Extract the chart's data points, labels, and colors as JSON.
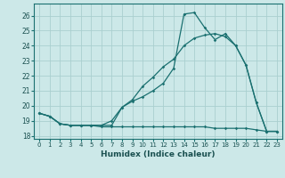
{
  "xlabel": "Humidex (Indice chaleur)",
  "ylabel": "",
  "bg_color": "#cce8e8",
  "grid_color": "#aacfcf",
  "line_color": "#1a7070",
  "xlim": [
    -0.5,
    23.5
  ],
  "ylim": [
    17.8,
    26.8
  ],
  "yticks": [
    18,
    19,
    20,
    21,
    22,
    23,
    24,
    25,
    26
  ],
  "xticks": [
    0,
    1,
    2,
    3,
    4,
    5,
    6,
    7,
    8,
    9,
    10,
    11,
    12,
    13,
    14,
    15,
    16,
    17,
    18,
    19,
    20,
    21,
    22,
    23
  ],
  "series1_x": [
    0,
    1,
    2,
    3,
    4,
    5,
    6,
    7,
    8,
    9,
    10,
    11,
    12,
    13,
    14,
    15,
    16,
    17,
    18,
    19,
    20,
    21,
    22,
    23
  ],
  "series1_y": [
    19.5,
    19.3,
    18.8,
    18.7,
    18.7,
    18.7,
    18.6,
    18.6,
    18.6,
    18.6,
    18.6,
    18.6,
    18.6,
    18.6,
    18.6,
    18.6,
    18.6,
    18.5,
    18.5,
    18.5,
    18.5,
    18.4,
    18.3,
    18.3
  ],
  "series2_x": [
    0,
    1,
    2,
    3,
    4,
    5,
    6,
    7,
    8,
    9,
    10,
    11,
    12,
    13,
    14,
    15,
    16,
    17,
    18,
    19,
    20,
    21,
    22,
    23
  ],
  "series2_y": [
    19.5,
    19.3,
    18.8,
    18.7,
    18.7,
    18.7,
    18.7,
    18.7,
    19.9,
    20.3,
    20.6,
    21.0,
    21.5,
    22.5,
    26.1,
    26.2,
    25.2,
    24.4,
    24.8,
    24.0,
    22.7,
    20.2,
    18.3,
    18.3
  ],
  "series3_x": [
    0,
    1,
    2,
    3,
    4,
    5,
    6,
    7,
    8,
    9,
    10,
    11,
    12,
    13,
    14,
    15,
    16,
    17,
    18,
    19,
    20,
    21,
    22,
    23
  ],
  "series3_y": [
    19.5,
    19.3,
    18.8,
    18.7,
    18.7,
    18.7,
    18.7,
    19.0,
    19.9,
    20.4,
    21.3,
    21.9,
    22.6,
    23.1,
    24.0,
    24.5,
    24.7,
    24.8,
    24.6,
    24.0,
    22.7,
    20.2,
    18.3,
    18.3
  ]
}
